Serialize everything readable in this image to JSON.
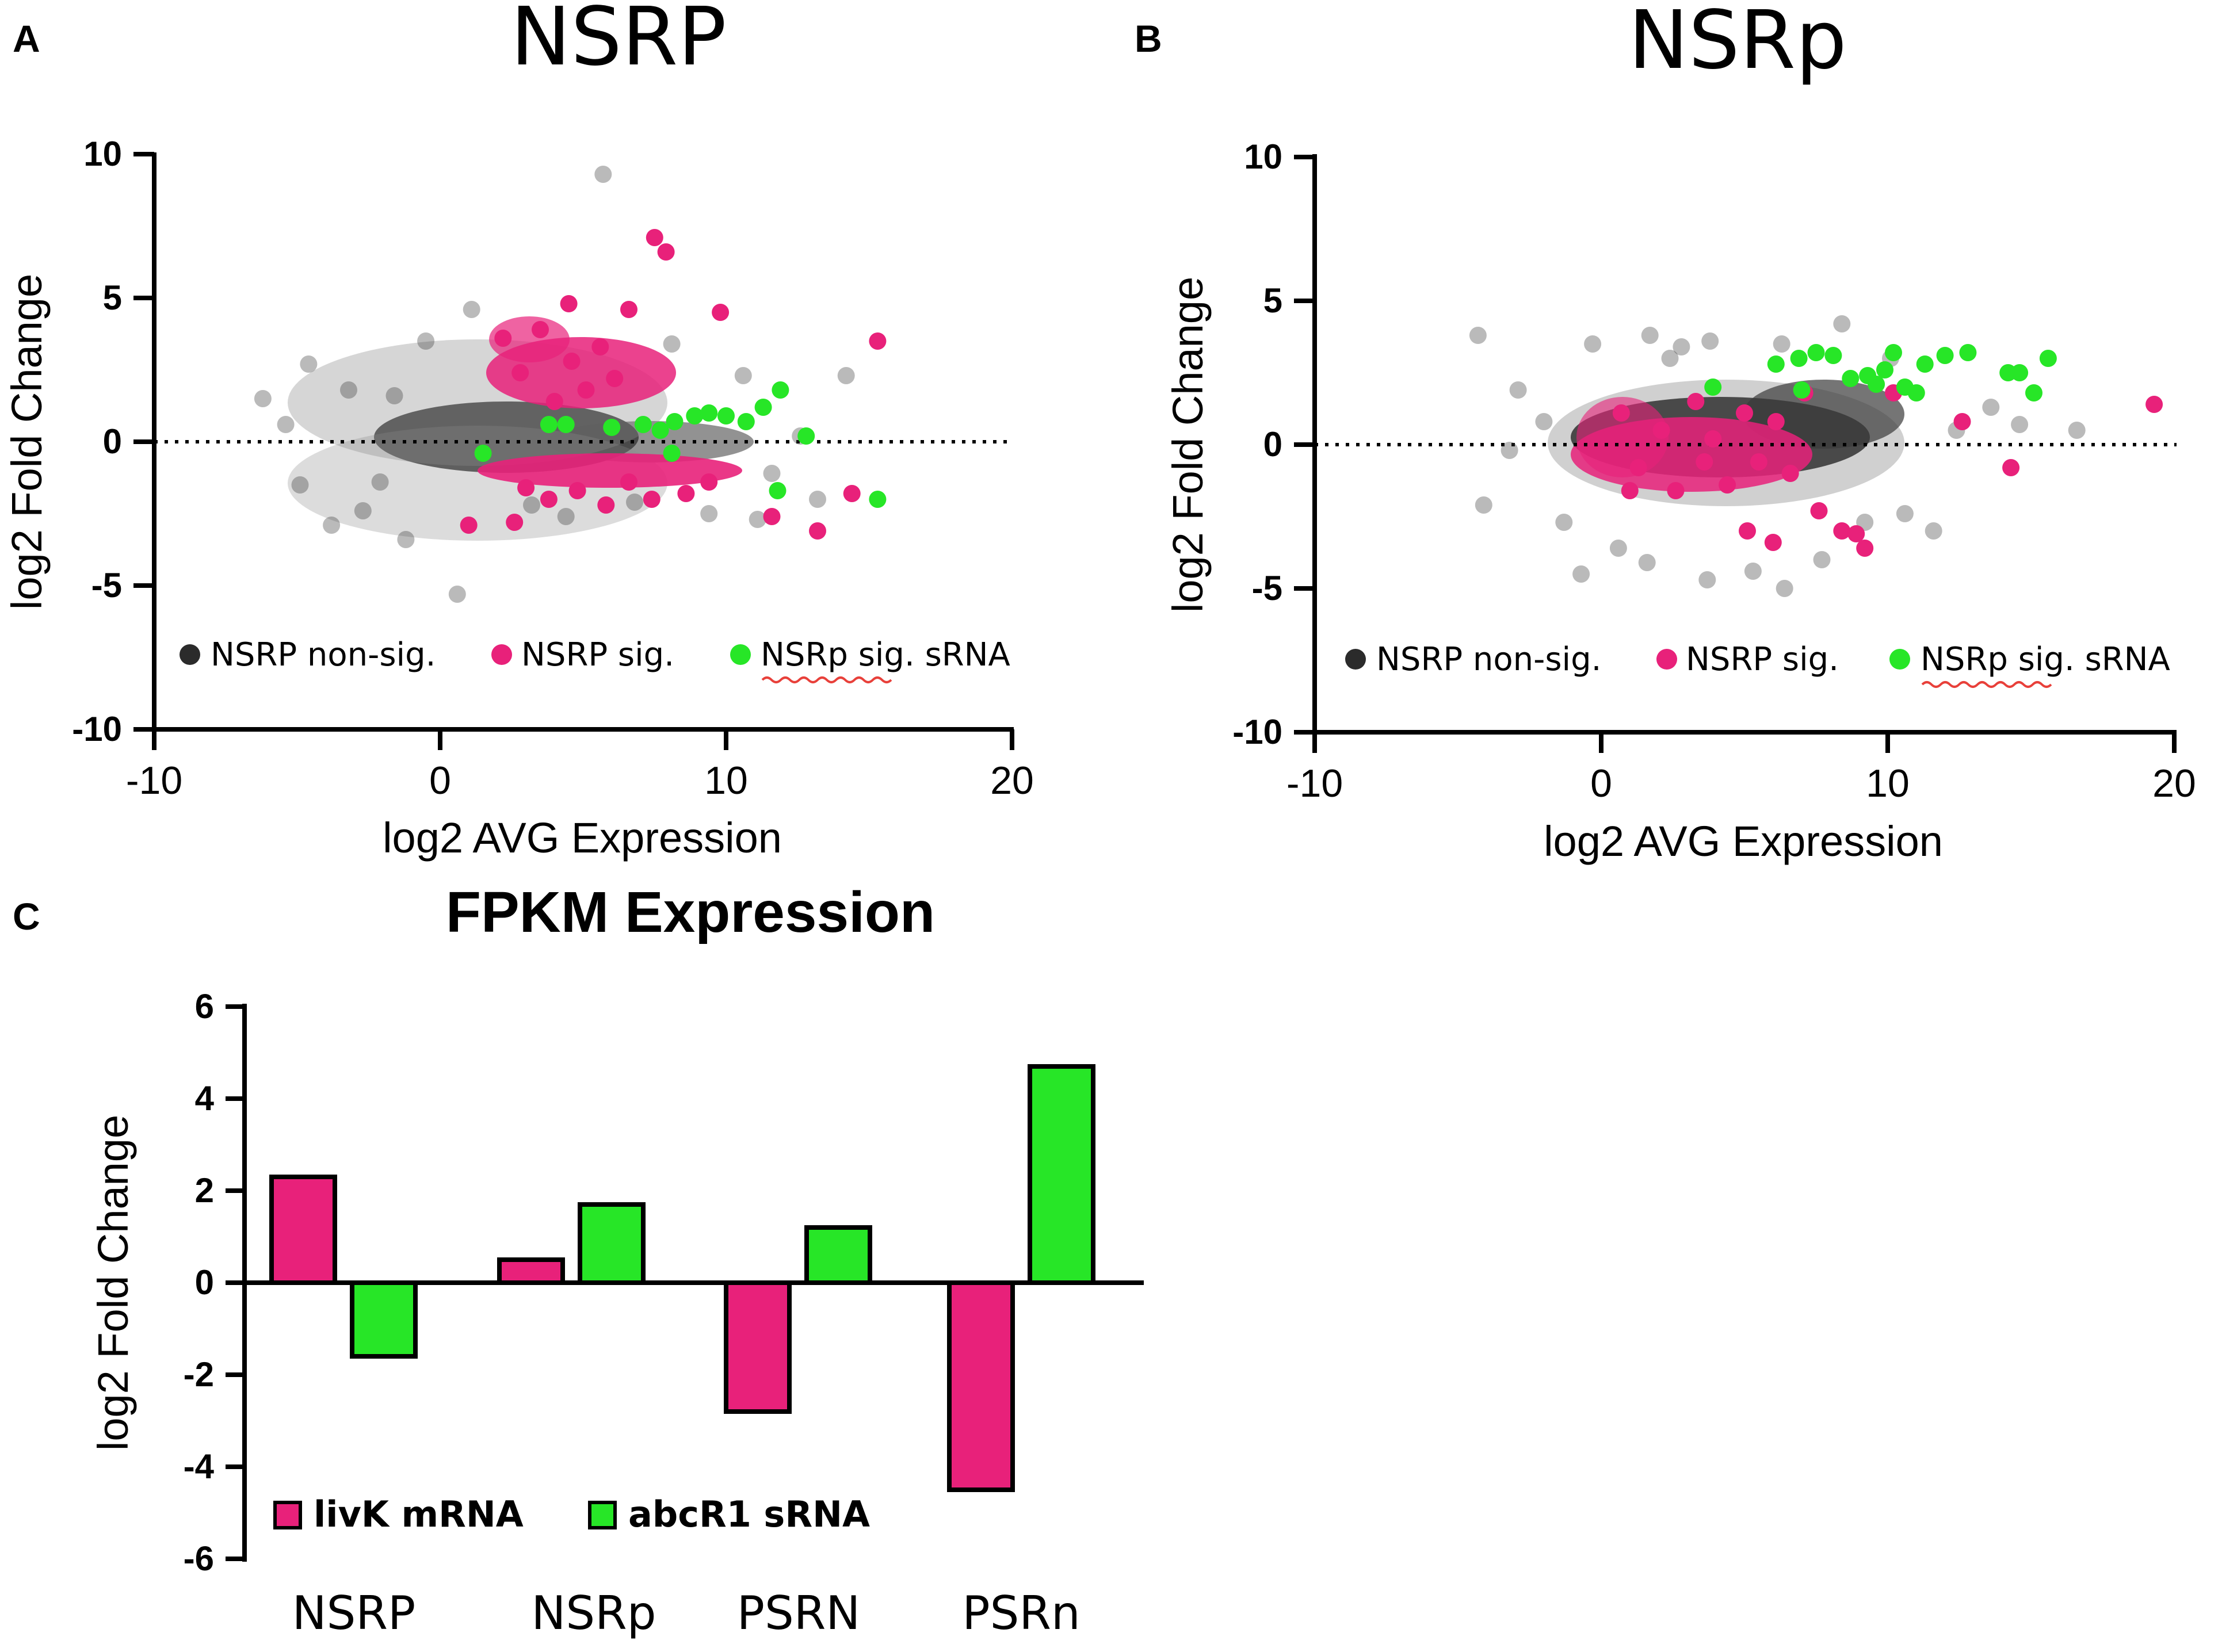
{
  "panels": {
    "a": {
      "label": "A",
      "title": "NSRP"
    },
    "b": {
      "label": "B",
      "title": "NSRp"
    },
    "c": {
      "label": "C",
      "title": "FPKM Expression"
    }
  },
  "colors": {
    "nonsig": "#3a3a3a",
    "sig": "#e8217a",
    "srna": "#27e627",
    "livk": "#e8217a",
    "abcr1": "#27e627"
  },
  "chart_data": [
    {
      "id": "A",
      "type": "scatter",
      "title": "NSRP",
      "xlabel": "log2 AVG Expression",
      "ylabel": "log2 Fold Change",
      "xlim": [
        -10,
        20
      ],
      "ylim": [
        -10,
        10
      ],
      "xticks": [
        "-10",
        "0",
        "10",
        "20"
      ],
      "yticks": [
        "10",
        "5",
        "0",
        "-5",
        "-10"
      ],
      "reference_line_y": 0,
      "legend": [
        "NSRP non-sig.",
        "NSRP sig.",
        "NSRp sig. sRNA"
      ],
      "legend_position": "bottom",
      "series": [
        {
          "name": "NSRP non-sig.",
          "color": "#3a3a3a",
          "points": [
            [
              -6.2,
              1.5
            ],
            [
              -5.4,
              0.6
            ],
            [
              -4.6,
              2.7
            ],
            [
              -4.9,
              -1.5
            ],
            [
              -3.8,
              -2.9
            ],
            [
              -3.2,
              1.8
            ],
            [
              -2.7,
              -2.4
            ],
            [
              -1.2,
              -3.4
            ],
            [
              -0.5,
              3.5
            ],
            [
              0.6,
              -5.3
            ],
            [
              1.1,
              4.6
            ],
            [
              5.7,
              9.3
            ],
            [
              3.2,
              -2.2
            ],
            [
              4.4,
              -2.6
            ],
            [
              6.8,
              -2.1
            ],
            [
              8.1,
              3.4
            ],
            [
              9.4,
              -2.5
            ],
            [
              11.1,
              -2.7
            ],
            [
              11.6,
              -1.1
            ],
            [
              12.6,
              0.2
            ],
            [
              13.2,
              -2.0
            ],
            [
              14.2,
              2.3
            ],
            [
              10.6,
              2.3
            ],
            [
              -2.1,
              -1.4
            ],
            [
              -1.6,
              1.6
            ]
          ]
        },
        {
          "name": "NSRP sig.",
          "color": "#e8217a",
          "points": [
            [
              2.2,
              3.6
            ],
            [
              2.8,
              2.4
            ],
            [
              3.5,
              3.9
            ],
            [
              4.0,
              1.4
            ],
            [
              4.6,
              2.8
            ],
            [
              5.1,
              1.8
            ],
            [
              5.6,
              3.3
            ],
            [
              6.1,
              2.2
            ],
            [
              6.6,
              4.6
            ],
            [
              7.5,
              7.1
            ],
            [
              7.9,
              6.6
            ],
            [
              9.8,
              4.5
            ],
            [
              15.3,
              3.5
            ],
            [
              4.5,
              4.8
            ],
            [
              3.0,
              -1.6
            ],
            [
              3.8,
              -2.0
            ],
            [
              4.8,
              -1.7
            ],
            [
              5.8,
              -2.2
            ],
            [
              6.6,
              -1.4
            ],
            [
              7.4,
              -2.0
            ],
            [
              8.6,
              -1.8
            ],
            [
              9.4,
              -1.4
            ],
            [
              1.0,
              -2.9
            ],
            [
              2.6,
              -2.8
            ],
            [
              11.6,
              -2.6
            ],
            [
              13.2,
              -3.1
            ],
            [
              14.4,
              -1.8
            ]
          ]
        },
        {
          "name": "NSRp sig. sRNA",
          "color": "#27e627",
          "points": [
            [
              1.5,
              -0.4
            ],
            [
              3.8,
              0.6
            ],
            [
              4.4,
              0.6
            ],
            [
              6.0,
              0.5
            ],
            [
              7.1,
              0.6
            ],
            [
              7.7,
              0.4
            ],
            [
              8.2,
              0.7
            ],
            [
              8.9,
              0.9
            ],
            [
              9.4,
              1.0
            ],
            [
              10.0,
              0.9
            ],
            [
              10.7,
              0.7
            ],
            [
              11.3,
              1.2
            ],
            [
              11.9,
              1.8
            ],
            [
              12.8,
              0.2
            ],
            [
              11.8,
              -1.7
            ],
            [
              15.3,
              -2.0
            ],
            [
              8.1,
              -0.4
            ]
          ]
        }
      ]
    },
    {
      "id": "B",
      "type": "scatter",
      "title": "NSRp",
      "xlabel": "log2 AVG Expression",
      "ylabel": "log2 Fold Change",
      "xlim": [
        -10,
        20
      ],
      "ylim": [
        -10,
        10
      ],
      "xticks": [
        "-10",
        "0",
        "10",
        "20"
      ],
      "yticks": [
        "10",
        "5",
        "0",
        "-5",
        "-10"
      ],
      "reference_line_y": 0,
      "legend": [
        "NSRP non-sig.",
        "NSRP sig.",
        "NSRp sig. sRNA"
      ],
      "legend_position": "bottom",
      "series": [
        {
          "name": "NSRP non-sig.",
          "color": "#3a3a3a",
          "points": [
            [
              -4.3,
              3.8
            ],
            [
              -4.1,
              -2.1
            ],
            [
              -2.9,
              1.9
            ],
            [
              -3.2,
              -0.2
            ],
            [
              -2.0,
              0.8
            ],
            [
              -0.3,
              3.5
            ],
            [
              1.7,
              3.8
            ],
            [
              2.8,
              3.4
            ],
            [
              3.8,
              3.6
            ],
            [
              6.3,
              3.5
            ],
            [
              8.4,
              4.2
            ],
            [
              10.1,
              3.0
            ],
            [
              9.2,
              -2.7
            ],
            [
              10.6,
              -2.4
            ],
            [
              11.6,
              -3.0
            ],
            [
              7.7,
              -4.0
            ],
            [
              3.7,
              -4.7
            ],
            [
              1.6,
              -4.1
            ],
            [
              0.6,
              -3.6
            ],
            [
              -0.7,
              -4.5
            ],
            [
              13.6,
              1.3
            ],
            [
              14.6,
              0.7
            ],
            [
              16.6,
              0.5
            ],
            [
              12.4,
              0.5
            ],
            [
              -1.3,
              -2.7
            ],
            [
              6.4,
              -5.0
            ],
            [
              5.3,
              -4.4
            ],
            [
              2.4,
              3.0
            ]
          ]
        },
        {
          "name": "NSRP sig.",
          "color": "#e8217a",
          "points": [
            [
              0.7,
              1.1
            ],
            [
              1.3,
              -0.8
            ],
            [
              2.1,
              0.5
            ],
            [
              2.6,
              -1.6
            ],
            [
              3.3,
              1.5
            ],
            [
              3.9,
              0.2
            ],
            [
              4.4,
              -1.4
            ],
            [
              5.0,
              1.1
            ],
            [
              5.5,
              -0.6
            ],
            [
              6.1,
              0.8
            ],
            [
              6.6,
              -1.0
            ],
            [
              7.1,
              1.8
            ],
            [
              7.6,
              -2.3
            ],
            [
              8.4,
              -3.0
            ],
            [
              8.9,
              -3.1
            ],
            [
              9.2,
              -3.6
            ],
            [
              6.0,
              -3.4
            ],
            [
              5.1,
              -3.0
            ],
            [
              12.6,
              0.8
            ],
            [
              14.3,
              -0.8
            ],
            [
              19.3,
              1.4
            ],
            [
              10.2,
              1.8
            ],
            [
              1.0,
              -1.6
            ],
            [
              3.6,
              -0.6
            ]
          ]
        },
        {
          "name": "NSRp sig. sRNA",
          "color": "#27e627",
          "points": [
            [
              3.9,
              2.0
            ],
            [
              6.1,
              2.8
            ],
            [
              6.9,
              3.0
            ],
            [
              7.5,
              3.2
            ],
            [
              8.1,
              3.1
            ],
            [
              8.7,
              2.3
            ],
            [
              9.3,
              2.4
            ],
            [
              9.9,
              2.6
            ],
            [
              10.2,
              3.2
            ],
            [
              10.6,
              2.0
            ],
            [
              11.0,
              1.8
            ],
            [
              11.3,
              2.8
            ],
            [
              12.0,
              3.1
            ],
            [
              12.8,
              3.2
            ],
            [
              14.2,
              2.5
            ],
            [
              14.6,
              2.5
            ],
            [
              15.1,
              1.8
            ],
            [
              15.6,
              3.0
            ],
            [
              9.6,
              2.1
            ],
            [
              7.0,
              1.9
            ]
          ]
        }
      ]
    },
    {
      "id": "C",
      "type": "bar",
      "title": "FPKM Expression",
      "xlabel": "",
      "ylabel": "log2 Fold Change",
      "ylim": [
        -6,
        6
      ],
      "yticks": [
        "6",
        "4",
        "2",
        "0",
        "-2",
        "-4",
        "-6"
      ],
      "categories": [
        "NSRP",
        "NSRp",
        "PSRN",
        "PSRn"
      ],
      "legend": [
        "livK mRNA",
        "abcR1 sRNA"
      ],
      "legend_position": "bottom-left",
      "series": [
        {
          "name": "livK mRNA",
          "color": "#e8217a",
          "values": [
            2.3,
            0.5,
            -2.8,
            -4.5
          ]
        },
        {
          "name": "abcR1 sRNA",
          "color": "#27e627",
          "values": [
            -1.6,
            1.7,
            1.2,
            4.7
          ]
        }
      ]
    }
  ]
}
